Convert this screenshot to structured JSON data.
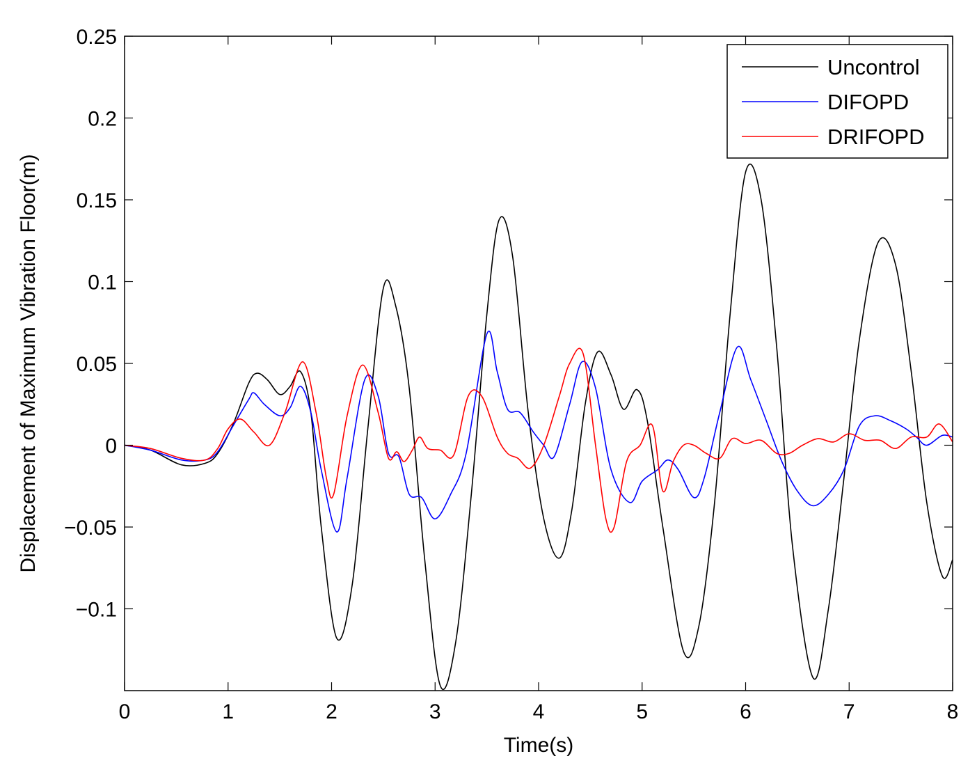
{
  "chart_data": {
    "type": "line",
    "title": "",
    "xlabel": "Time(s)",
    "ylabel": "Displacement of Maximum Vibration Floor(m)",
    "xlim": [
      0,
      8
    ],
    "ylim": [
      -0.15,
      0.25
    ],
    "xticks": [
      0,
      1,
      2,
      3,
      4,
      5,
      6,
      7,
      8
    ],
    "xtick_labels": [
      "0",
      "1",
      "2",
      "3",
      "4",
      "5",
      "6",
      "7",
      "8"
    ],
    "yticks": [
      -0.1,
      -0.05,
      0,
      0.05,
      0.1,
      0.15,
      0.2,
      0.25
    ],
    "ytick_labels": [
      "−0.1",
      "−0.05",
      "0",
      "0.05",
      "0.1",
      "0.15",
      "0.2",
      "0.25"
    ],
    "grid": false,
    "legend_position": "top-right",
    "series": [
      {
        "name": "Uncontrol",
        "color": "#000000",
        "x": [
          0,
          0.25,
          0.55,
          0.78,
          0.9,
          1.05,
          1.2,
          1.28,
          1.38,
          1.5,
          1.6,
          1.7,
          1.8,
          1.9,
          2.05,
          2.2,
          2.35,
          2.5,
          2.62,
          2.75,
          2.9,
          3.05,
          3.2,
          3.35,
          3.5,
          3.62,
          3.75,
          3.9,
          4.05,
          4.2,
          4.32,
          4.45,
          4.57,
          4.7,
          4.82,
          4.95,
          5.05,
          5.2,
          5.4,
          5.55,
          5.7,
          5.85,
          6.0,
          6.15,
          6.3,
          6.45,
          6.65,
          6.8,
          6.95,
          7.1,
          7.28,
          7.45,
          7.6,
          7.75,
          7.9,
          8.0
        ],
        "y": [
          0,
          -0.003,
          -0.012,
          -0.011,
          -0.005,
          0.013,
          0.038,
          0.044,
          0.04,
          0.031,
          0.036,
          0.045,
          0.02,
          -0.05,
          -0.118,
          -0.085,
          0.01,
          0.096,
          0.085,
          0.035,
          -0.07,
          -0.147,
          -0.12,
          -0.03,
          0.08,
          0.138,
          0.115,
          0.02,
          -0.045,
          -0.069,
          -0.04,
          0.025,
          0.057,
          0.043,
          0.022,
          0.034,
          0.015,
          -0.05,
          -0.126,
          -0.11,
          -0.035,
          0.08,
          0.167,
          0.15,
          0.06,
          -0.06,
          -0.142,
          -0.1,
          -0.02,
          0.065,
          0.124,
          0.11,
          0.045,
          -0.035,
          -0.08,
          -0.07
        ]
      },
      {
        "name": "DIFOPD",
        "color": "#0000ff",
        "x": [
          0,
          0.25,
          0.55,
          0.78,
          0.9,
          1.05,
          1.2,
          1.25,
          1.35,
          1.5,
          1.6,
          1.7,
          1.8,
          1.9,
          2.05,
          2.15,
          2.32,
          2.45,
          2.55,
          2.65,
          2.75,
          2.87,
          3.0,
          3.15,
          3.3,
          3.5,
          3.6,
          3.7,
          3.82,
          3.95,
          4.05,
          4.15,
          4.3,
          4.42,
          4.55,
          4.7,
          4.88,
          5.0,
          5.15,
          5.25,
          5.35,
          5.5,
          5.6,
          5.75,
          5.92,
          6.05,
          6.2,
          6.35,
          6.5,
          6.65,
          6.8,
          6.95,
          7.1,
          7.25,
          7.4,
          7.55,
          7.65,
          7.75,
          7.9,
          8.0
        ],
        "y": [
          0,
          -0.003,
          -0.009,
          -0.009,
          -0.004,
          0.012,
          0.028,
          0.032,
          0.025,
          0.018,
          0.023,
          0.036,
          0.02,
          -0.015,
          -0.053,
          -0.02,
          0.04,
          0.03,
          -0.005,
          -0.007,
          -0.03,
          -0.032,
          -0.045,
          -0.03,
          -0.005,
          0.068,
          0.045,
          0.022,
          0.02,
          0.008,
          0.0,
          -0.007,
          0.025,
          0.051,
          0.035,
          -0.015,
          -0.035,
          -0.022,
          -0.015,
          -0.009,
          -0.015,
          -0.032,
          -0.02,
          0.02,
          0.06,
          0.04,
          0.015,
          -0.01,
          -0.028,
          -0.037,
          -0.03,
          -0.015,
          0.012,
          0.018,
          0.015,
          0.01,
          0.005,
          0.0,
          0.006,
          0.005
        ]
      },
      {
        "name": "DRIFOPD",
        "color": "#ff0000",
        "x": [
          0,
          0.25,
          0.55,
          0.78,
          0.9,
          1.0,
          1.12,
          1.25,
          1.4,
          1.55,
          1.72,
          1.85,
          1.95,
          2.02,
          2.15,
          2.3,
          2.45,
          2.55,
          2.63,
          2.7,
          2.78,
          2.85,
          2.93,
          3.05,
          3.18,
          3.32,
          3.45,
          3.6,
          3.7,
          3.8,
          3.92,
          4.05,
          4.2,
          4.3,
          4.43,
          4.55,
          4.65,
          4.73,
          4.85,
          4.98,
          5.1,
          5.2,
          5.3,
          5.4,
          5.5,
          5.62,
          5.75,
          5.87,
          6.0,
          6.15,
          6.3,
          6.42,
          6.55,
          6.7,
          6.85,
          7.0,
          7.15,
          7.3,
          7.45,
          7.6,
          7.75,
          7.87,
          8.0
        ],
        "y": [
          0,
          -0.002,
          -0.008,
          -0.009,
          -0.002,
          0.01,
          0.016,
          0.008,
          0.0,
          0.02,
          0.051,
          0.02,
          -0.02,
          -0.03,
          0.018,
          0.049,
          0.02,
          -0.008,
          -0.004,
          -0.01,
          -0.003,
          0.005,
          -0.002,
          -0.003,
          -0.006,
          0.03,
          0.03,
          0.005,
          -0.005,
          -0.008,
          -0.014,
          0.0,
          0.03,
          0.05,
          0.056,
          0.0,
          -0.045,
          -0.05,
          -0.01,
          0.0,
          0.012,
          -0.028,
          -0.01,
          0.0,
          0.0,
          -0.005,
          -0.008,
          0.004,
          0.001,
          0.003,
          -0.005,
          -0.005,
          0.0,
          0.004,
          0.002,
          0.007,
          0.003,
          0.003,
          -0.002,
          0.005,
          0.005,
          0.013,
          0.002
        ]
      }
    ]
  }
}
